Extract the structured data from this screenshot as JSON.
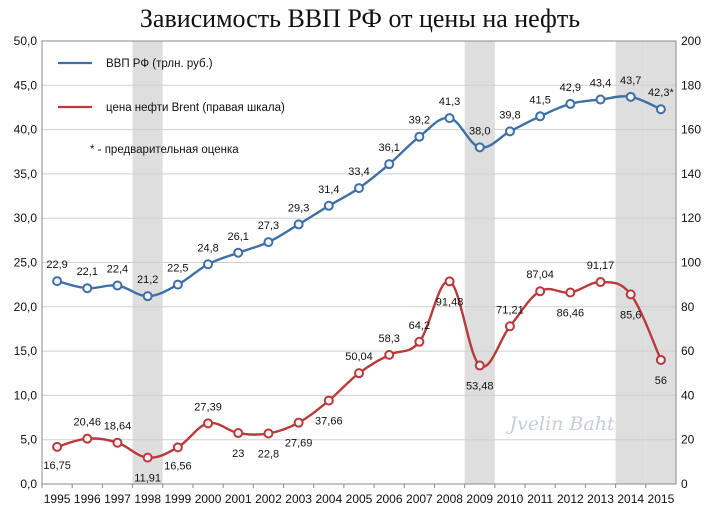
{
  "chart_data": {
    "type": "line",
    "title": "Зависимость ВВП РФ от цены на нефть",
    "categories": [
      "1995",
      "1996",
      "1997",
      "1998",
      "1999",
      "2000",
      "2001",
      "2002",
      "2003",
      "2004",
      "2005",
      "2006",
      "2007",
      "2008",
      "2009",
      "2010",
      "2011",
      "2012",
      "2013",
      "2014",
      "2015"
    ],
    "y_left": {
      "min": 0,
      "max": 50,
      "step": 5,
      "tick_labels": [
        "0,0",
        "5,0",
        "10,0",
        "15,0",
        "20,0",
        "25,0",
        "30,0",
        "35,0",
        "40,0",
        "45,0",
        "50,0"
      ]
    },
    "y_right": {
      "min": 0,
      "max": 200,
      "step": 20,
      "tick_labels": [
        "0",
        "20",
        "40",
        "60",
        "80",
        "100",
        "120",
        "140",
        "160",
        "180",
        "200"
      ]
    },
    "shaded_years": [
      "1998",
      "2009",
      "2014",
      "2015"
    ],
    "series": [
      {
        "name": "ВВП РФ (трлн. руб.)",
        "axis": "left",
        "color": "#3e6fa6",
        "values": [
          22.9,
          22.1,
          22.4,
          21.2,
          22.5,
          24.8,
          26.1,
          27.3,
          29.3,
          31.4,
          33.4,
          36.1,
          39.2,
          41.3,
          38.0,
          39.8,
          41.5,
          42.9,
          43.4,
          43.7,
          42.3
        ],
        "labels": [
          "22,9",
          "22,1",
          "22,4",
          "21,2",
          "22,5",
          "24,8",
          "26,1",
          "27,3",
          "29,3",
          "31,4",
          "33,4",
          "36,1",
          "39,2",
          "41,3",
          "38,0",
          "39,8",
          "41,5",
          "42,9",
          "43,4",
          "43,7",
          "42,3*"
        ]
      },
      {
        "name": "цена нефти Brent (правая шкала)",
        "axis": "right",
        "color": "#b83a3a",
        "values": [
          16.75,
          20.46,
          18.64,
          11.91,
          16.56,
          27.39,
          23,
          22.8,
          27.69,
          37.66,
          50.04,
          58.3,
          64.2,
          91.48,
          53.48,
          71.21,
          87.04,
          86.46,
          91.17,
          85.6,
          56
        ],
        "labels": [
          "16,75",
          "20,46",
          "18,64",
          "11,91",
          "16,56",
          "27,39",
          "23",
          "22,8",
          "27,69",
          "37,66",
          "50,04",
          "58,3",
          "64,2",
          "91,48",
          "53,48",
          "71,21",
          "87,04",
          "86,46",
          "91,17",
          "85,6",
          "56"
        ]
      }
    ],
    "note": "* - предварительная оценка",
    "watermark": "Jvelin Baht",
    "grid": true,
    "legend_position": "top-left"
  }
}
